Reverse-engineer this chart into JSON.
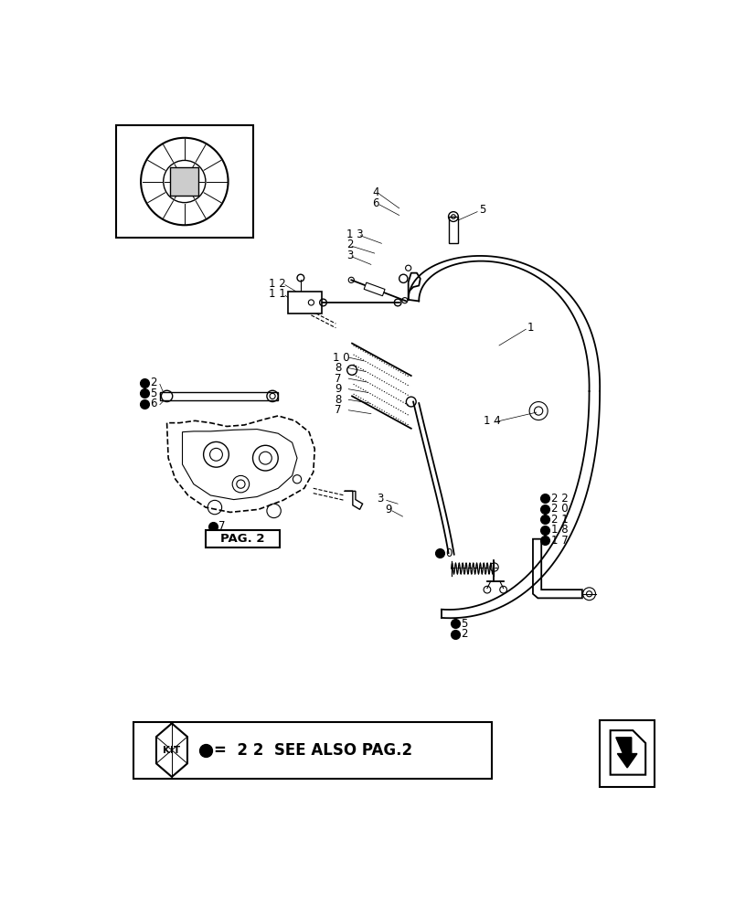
{
  "bg_color": "#ffffff",
  "line_color": "#000000",
  "label_color": "#000000",
  "fig_width": 8.28,
  "fig_height": 10.0,
  "kit_text": "KIT",
  "pag_text": "PAG. 2",
  "legend_text": "=  2 2  SEE ALSO PAG.2"
}
